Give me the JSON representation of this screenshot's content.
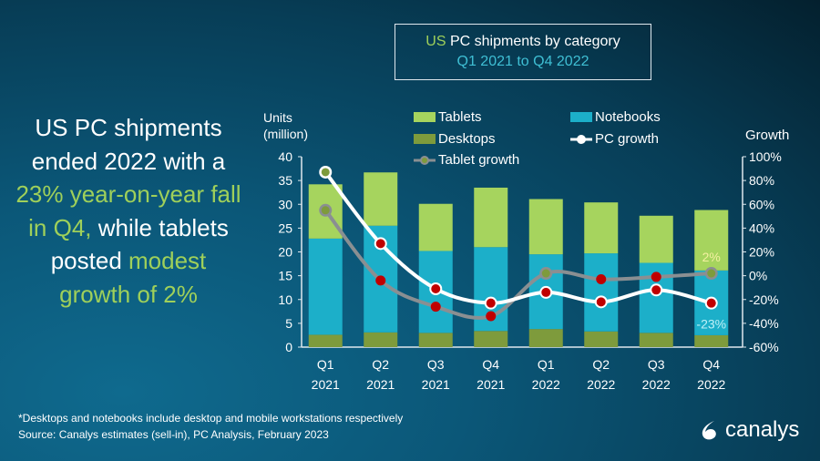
{
  "title": {
    "prefix": "US",
    "main": "PC shipments by category",
    "subtitle": "Q1 2021 to Q4 2022"
  },
  "headline": [
    [
      {
        "t": "US PC shipments",
        "c": "white"
      }
    ],
    [
      {
        "t": "ended 2022 with a",
        "c": "white"
      }
    ],
    [
      {
        "t": "23% year-on-year fall",
        "c": "green"
      }
    ],
    [
      {
        "t": "in Q4,",
        "c": "green"
      },
      {
        "t": " while tablets",
        "c": "white"
      }
    ],
    [
      {
        "t": "posted ",
        "c": "white"
      },
      {
        "t": "modest",
        "c": "green"
      }
    ],
    [
      {
        "t": "growth of 2%",
        "c": "green"
      }
    ]
  ],
  "footer": {
    "note": "*Desktops and notebooks  include desktop and mobile workstations respectively",
    "source": "Source: Canalys estimates (sell-in), PC Analysis, February 2023"
  },
  "logo": {
    "text": "canalys"
  },
  "colors": {
    "tablets": "#a6d45e",
    "notebooks": "#1cafc9",
    "desktops": "#7e9b3c",
    "pc_growth": "#ffffff",
    "tablet_growth": "#8a8f92",
    "point": "#c00000",
    "green_text": "#9fd05a"
  },
  "chart_data": {
    "type": "bar",
    "stacked": true,
    "categories": [
      "Q1 2021",
      "Q2 2021",
      "Q3 2021",
      "Q4 2021",
      "Q1 2022",
      "Q2 2022",
      "Q3 2022",
      "Q4 2022"
    ],
    "category_lines": [
      [
        "Q1",
        "2021"
      ],
      [
        "Q2",
        "2021"
      ],
      [
        "Q3",
        "2021"
      ],
      [
        "Q4",
        "2021"
      ],
      [
        "Q1",
        "2022"
      ],
      [
        "Q2",
        "2022"
      ],
      [
        "Q3",
        "2022"
      ],
      [
        "Q4",
        "2022"
      ]
    ],
    "ylabel": [
      "Units",
      "(million)"
    ],
    "y2label": "Growth",
    "ylim": [
      0,
      40
    ],
    "yticks": [
      0,
      5,
      10,
      15,
      20,
      25,
      30,
      35,
      40
    ],
    "y2lim": [
      -60,
      100
    ],
    "y2ticks": [
      "-60%",
      "-40%",
      "-20%",
      "0%",
      "20%",
      "40%",
      "60%",
      "80%",
      "100%"
    ],
    "grid": false,
    "series": [
      {
        "name": "Desktops",
        "type": "bar",
        "values": [
          2.6,
          3.1,
          3.0,
          3.4,
          3.8,
          3.3,
          3.0,
          2.5
        ]
      },
      {
        "name": "Notebooks",
        "type": "bar",
        "values": [
          20.2,
          22.4,
          17.2,
          17.6,
          15.7,
          16.4,
          14.7,
          13.6
        ]
      },
      {
        "name": "Tablets",
        "type": "bar",
        "values": [
          11.4,
          11.2,
          9.9,
          12.5,
          11.6,
          10.7,
          9.9,
          12.7
        ]
      },
      {
        "name": "PC growth",
        "type": "line",
        "axis": "right",
        "values": [
          87,
          27,
          -11,
          -23,
          -14,
          -22,
          -12,
          -23
        ]
      },
      {
        "name": "Tablet growth",
        "type": "line",
        "axis": "right",
        "values": [
          55,
          -4,
          -26,
          -34,
          2,
          -3,
          -1,
          2
        ]
      }
    ],
    "legend": [
      "Tablets",
      "Notebooks",
      "Desktops",
      "PC growth",
      "Tablet growth"
    ],
    "legend_position": "top",
    "annotations": [
      {
        "text": "2%",
        "series": "Tablet growth",
        "category": "Q4 2022"
      },
      {
        "text": "-23%",
        "series": "PC growth",
        "category": "Q4 2022"
      }
    ]
  }
}
